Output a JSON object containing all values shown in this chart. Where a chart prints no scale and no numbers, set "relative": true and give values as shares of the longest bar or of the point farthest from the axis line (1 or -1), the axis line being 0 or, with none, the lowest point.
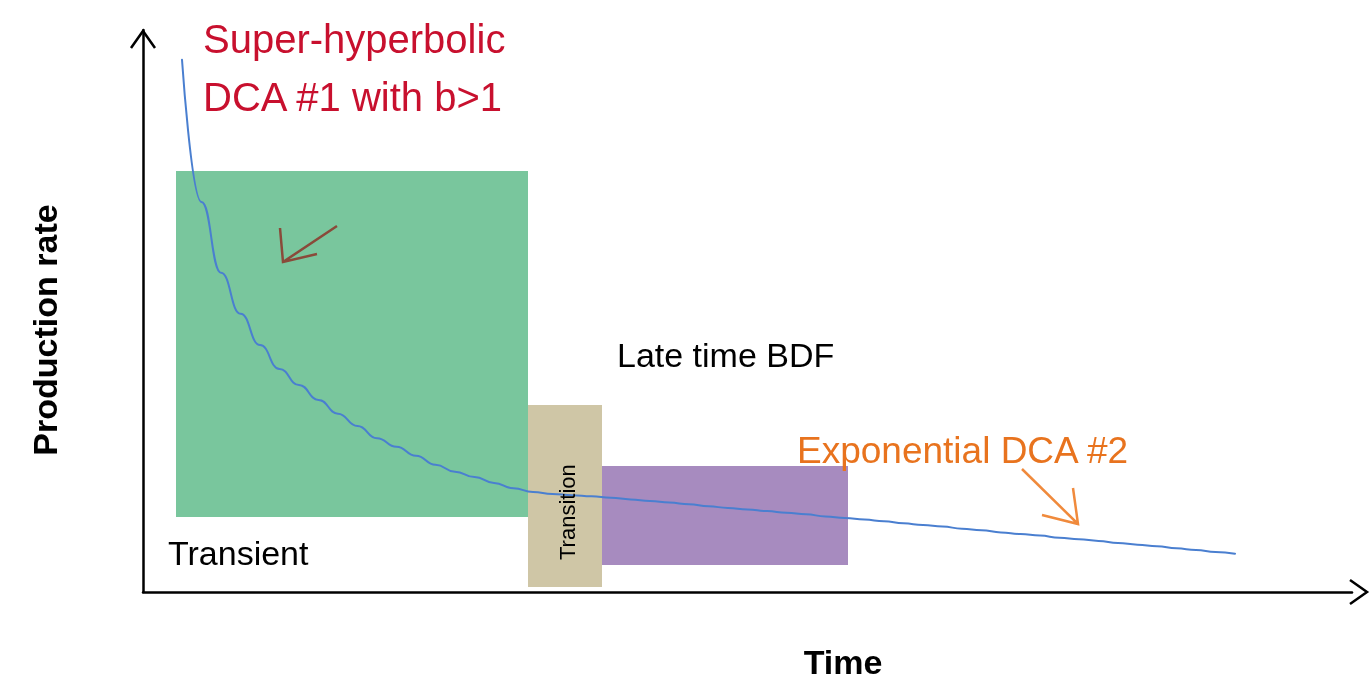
{
  "chart_data": {
    "type": "line",
    "relative": true,
    "xlabel": "Time",
    "ylabel": "Production rate",
    "marker": "none",
    "categories": [
      null,
      null,
      null,
      null,
      null,
      null,
      null,
      null,
      null,
      null,
      null,
      null,
      null,
      null,
      null,
      null,
      null,
      null,
      null,
      null,
      null,
      null,
      null,
      null,
      null,
      null,
      null,
      null,
      null,
      null,
      null,
      null,
      null,
      null,
      null,
      null,
      null,
      null,
      null,
      null,
      null,
      null,
      null,
      null,
      null,
      null,
      null,
      null,
      null,
      null,
      null,
      null,
      null,
      null,
      null,
      null,
      null,
      null,
      null,
      null,
      null,
      null,
      null
    ],
    "series": [
      {
        "color": "#4a7fd0",
        "values": [
          null,
          null,
          1,
          0.733,
          0.6,
          0.523,
          0.464,
          0.419,
          0.389,
          0.361,
          0.335,
          0.312,
          0.289,
          0.273,
          0.256,
          0.239,
          0.226,
          0.216,
          0.205,
          0.195,
          0.188,
          0.184,
          0.182,
          0.18,
          0.177,
          0.174,
          0.171,
          0.168,
          0.165,
          0.161,
          0.158,
          0.155,
          0.152,
          0.149,
          0.146,
          0.142,
          0.139,
          0.136,
          0.133,
          0.129,
          0.126,
          0.123,
          0.119,
          0.116,
          0.112,
          0.109,
          0.106,
          0.102,
          0.099,
          0.096,
          0.092,
          0.089,
          0.086,
          0.082,
          0.079,
          0.075,
          0.072,
          null,
          null,
          null,
          null,
          null,
          null
        ]
      }
    ],
    "annotations": [
      "Super-hyperbolic DCA #1 with b>1",
      "Late time BDF",
      "Exponential DCA #2",
      "Transient",
      "Transition"
    ]
  }
}
